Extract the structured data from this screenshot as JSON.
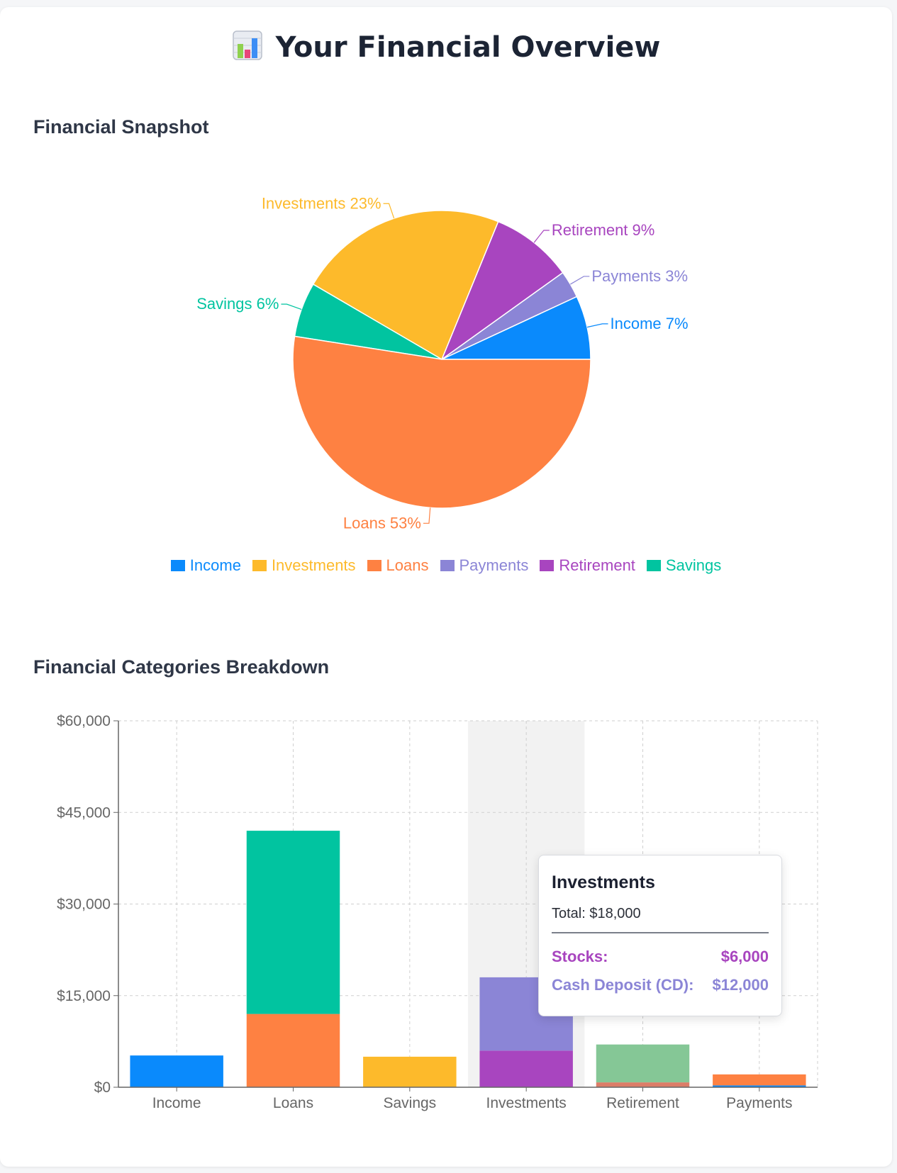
{
  "header": {
    "title": "Your Financial Overview",
    "emoji_icon": "bar-chart-icon"
  },
  "sections": {
    "snapshot_title": "Financial Snapshot",
    "breakdown_title": "Financial Categories Breakdown"
  },
  "colors": {
    "income": "#0a8afc",
    "investments": "#fdba2b",
    "loans": "#fe8142",
    "payments": "#8b85d6",
    "retirement": "#a845bf",
    "savings": "#01c4a0",
    "retirement_bonds": "#85c796",
    "retirement_base": "#db7d68"
  },
  "chart_data": [
    {
      "type": "pie",
      "slices": [
        {
          "name": "Income",
          "percent": 7,
          "label": "Income 7%",
          "color": "#0a8afc"
        },
        {
          "name": "Payments",
          "percent": 3,
          "label": "Payments 3%",
          "color": "#8b85d6"
        },
        {
          "name": "Retirement",
          "percent": 9,
          "label": "Retirement 9%",
          "color": "#a845bf"
        },
        {
          "name": "Investments",
          "percent": 23,
          "label": "Investments 23%",
          "color": "#fdba2b"
        },
        {
          "name": "Savings",
          "percent": 6,
          "label": "Savings 6%",
          "color": "#01c4a0"
        },
        {
          "name": "Loans",
          "percent": 53,
          "label": "Loans 53%",
          "color": "#fe8142"
        }
      ],
      "legend": [
        {
          "name": "Income",
          "color": "#0a8afc"
        },
        {
          "name": "Investments",
          "color": "#fdba2b"
        },
        {
          "name": "Loans",
          "color": "#fe8142"
        },
        {
          "name": "Payments",
          "color": "#8b85d6"
        },
        {
          "name": "Retirement",
          "color": "#a845bf"
        },
        {
          "name": "Savings",
          "color": "#01c4a0"
        }
      ],
      "legend_position": "bottom"
    },
    {
      "type": "bar",
      "stacked": true,
      "categories": [
        "Income",
        "Loans",
        "Savings",
        "Investments",
        "Retirement",
        "Payments"
      ],
      "stacks": [
        [
          {
            "value": 5200,
            "color": "#0a8afc"
          }
        ],
        [
          {
            "value": 12000,
            "color": "#fe8142"
          },
          {
            "value": 30000,
            "color": "#01c4a0"
          }
        ],
        [
          {
            "value": 5000,
            "color": "#fdba2b"
          }
        ],
        [
          {
            "value": 6000,
            "color": "#a845bf"
          },
          {
            "value": 12000,
            "color": "#8b85d6"
          }
        ],
        [
          {
            "value": 800,
            "color": "#db7d68"
          },
          {
            "value": 6200,
            "color": "#85c796"
          }
        ],
        [
          {
            "value": 300,
            "color": "#0a8afc"
          },
          {
            "value": 1800,
            "color": "#fe8142"
          }
        ]
      ],
      "ylim": [
        0,
        60000
      ],
      "yticks": [
        0,
        15000,
        30000,
        45000,
        60000
      ],
      "ytick_labels": [
        "$0",
        "$15,000",
        "$30,000",
        "$45,000",
        "$60,000"
      ],
      "grid": true,
      "highlighted_category": "Investments"
    }
  ],
  "tooltip": {
    "title": "Investments",
    "total": "Total: $18,000",
    "rows": [
      {
        "label": "Stocks:",
        "value": "$6,000",
        "color": "#a845bf"
      },
      {
        "label": "Cash Deposit (CD):",
        "value": "$12,000",
        "color": "#8b85d6"
      }
    ]
  }
}
